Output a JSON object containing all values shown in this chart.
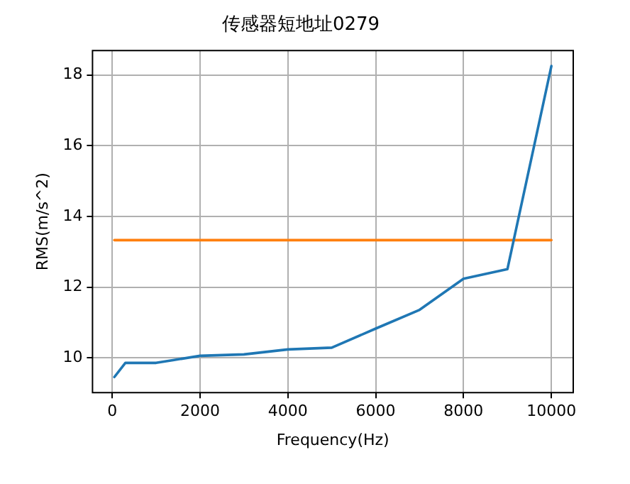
{
  "chart_data": {
    "type": "line",
    "title": "传感器短地址0279",
    "xlabel": "Frequency(Hz)",
    "ylabel": "RMS(m/s^2)",
    "x": [
      50,
      300,
      1000,
      2000,
      3000,
      4000,
      5000,
      6000,
      7000,
      8000,
      9000,
      10000
    ],
    "series": [
      {
        "color": "#1f77b4",
        "values": [
          9.46,
          9.86,
          9.86,
          10.06,
          10.1,
          10.24,
          10.29,
          10.83,
          11.36,
          12.24,
          12.51,
          18.25
        ]
      },
      {
        "color": "#ff7f0e",
        "x": [
          50,
          10000
        ],
        "values": [
          13.33,
          13.33
        ]
      }
    ],
    "xlim": [
      -448,
      10498
    ],
    "ylim": [
      9.02,
      18.69
    ],
    "xticks": [
      0,
      2000,
      4000,
      6000,
      8000,
      10000
    ],
    "yticks": [
      10,
      12,
      14,
      16,
      18
    ],
    "grid": true,
    "legend": false
  }
}
